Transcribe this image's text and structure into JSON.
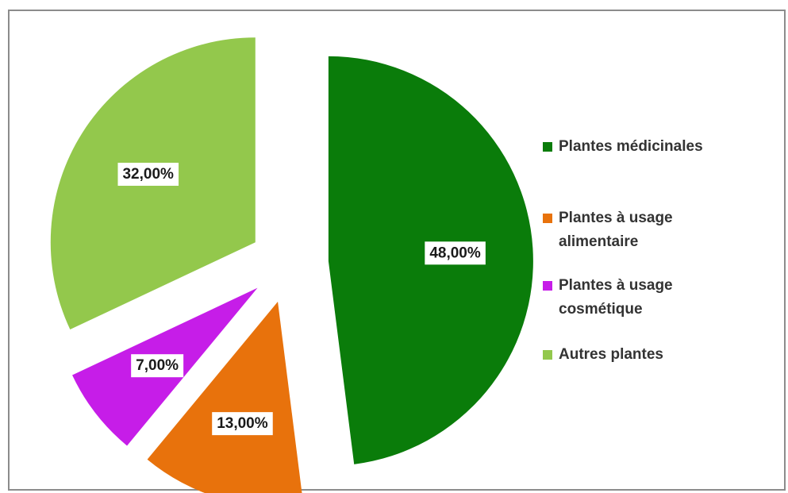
{
  "chart_data": {
    "type": "pie",
    "title": "",
    "exploded": true,
    "legend_position": "right",
    "slices": [
      {
        "label": "Plantes médicinales",
        "value": 48,
        "display": "48,00%",
        "color": "#0a7c0a"
      },
      {
        "label": "Plantes à usage alimentaire",
        "value": 13,
        "display": "13,00%",
        "color": "#e8720c"
      },
      {
        "label": "Plantes à usage cosmétique",
        "value": 7,
        "display": "7,00%",
        "color": "#c61de8"
      },
      {
        "label": "Autres plantes",
        "value": 32,
        "display": "32,00%",
        "color": "#93c84c"
      }
    ]
  }
}
